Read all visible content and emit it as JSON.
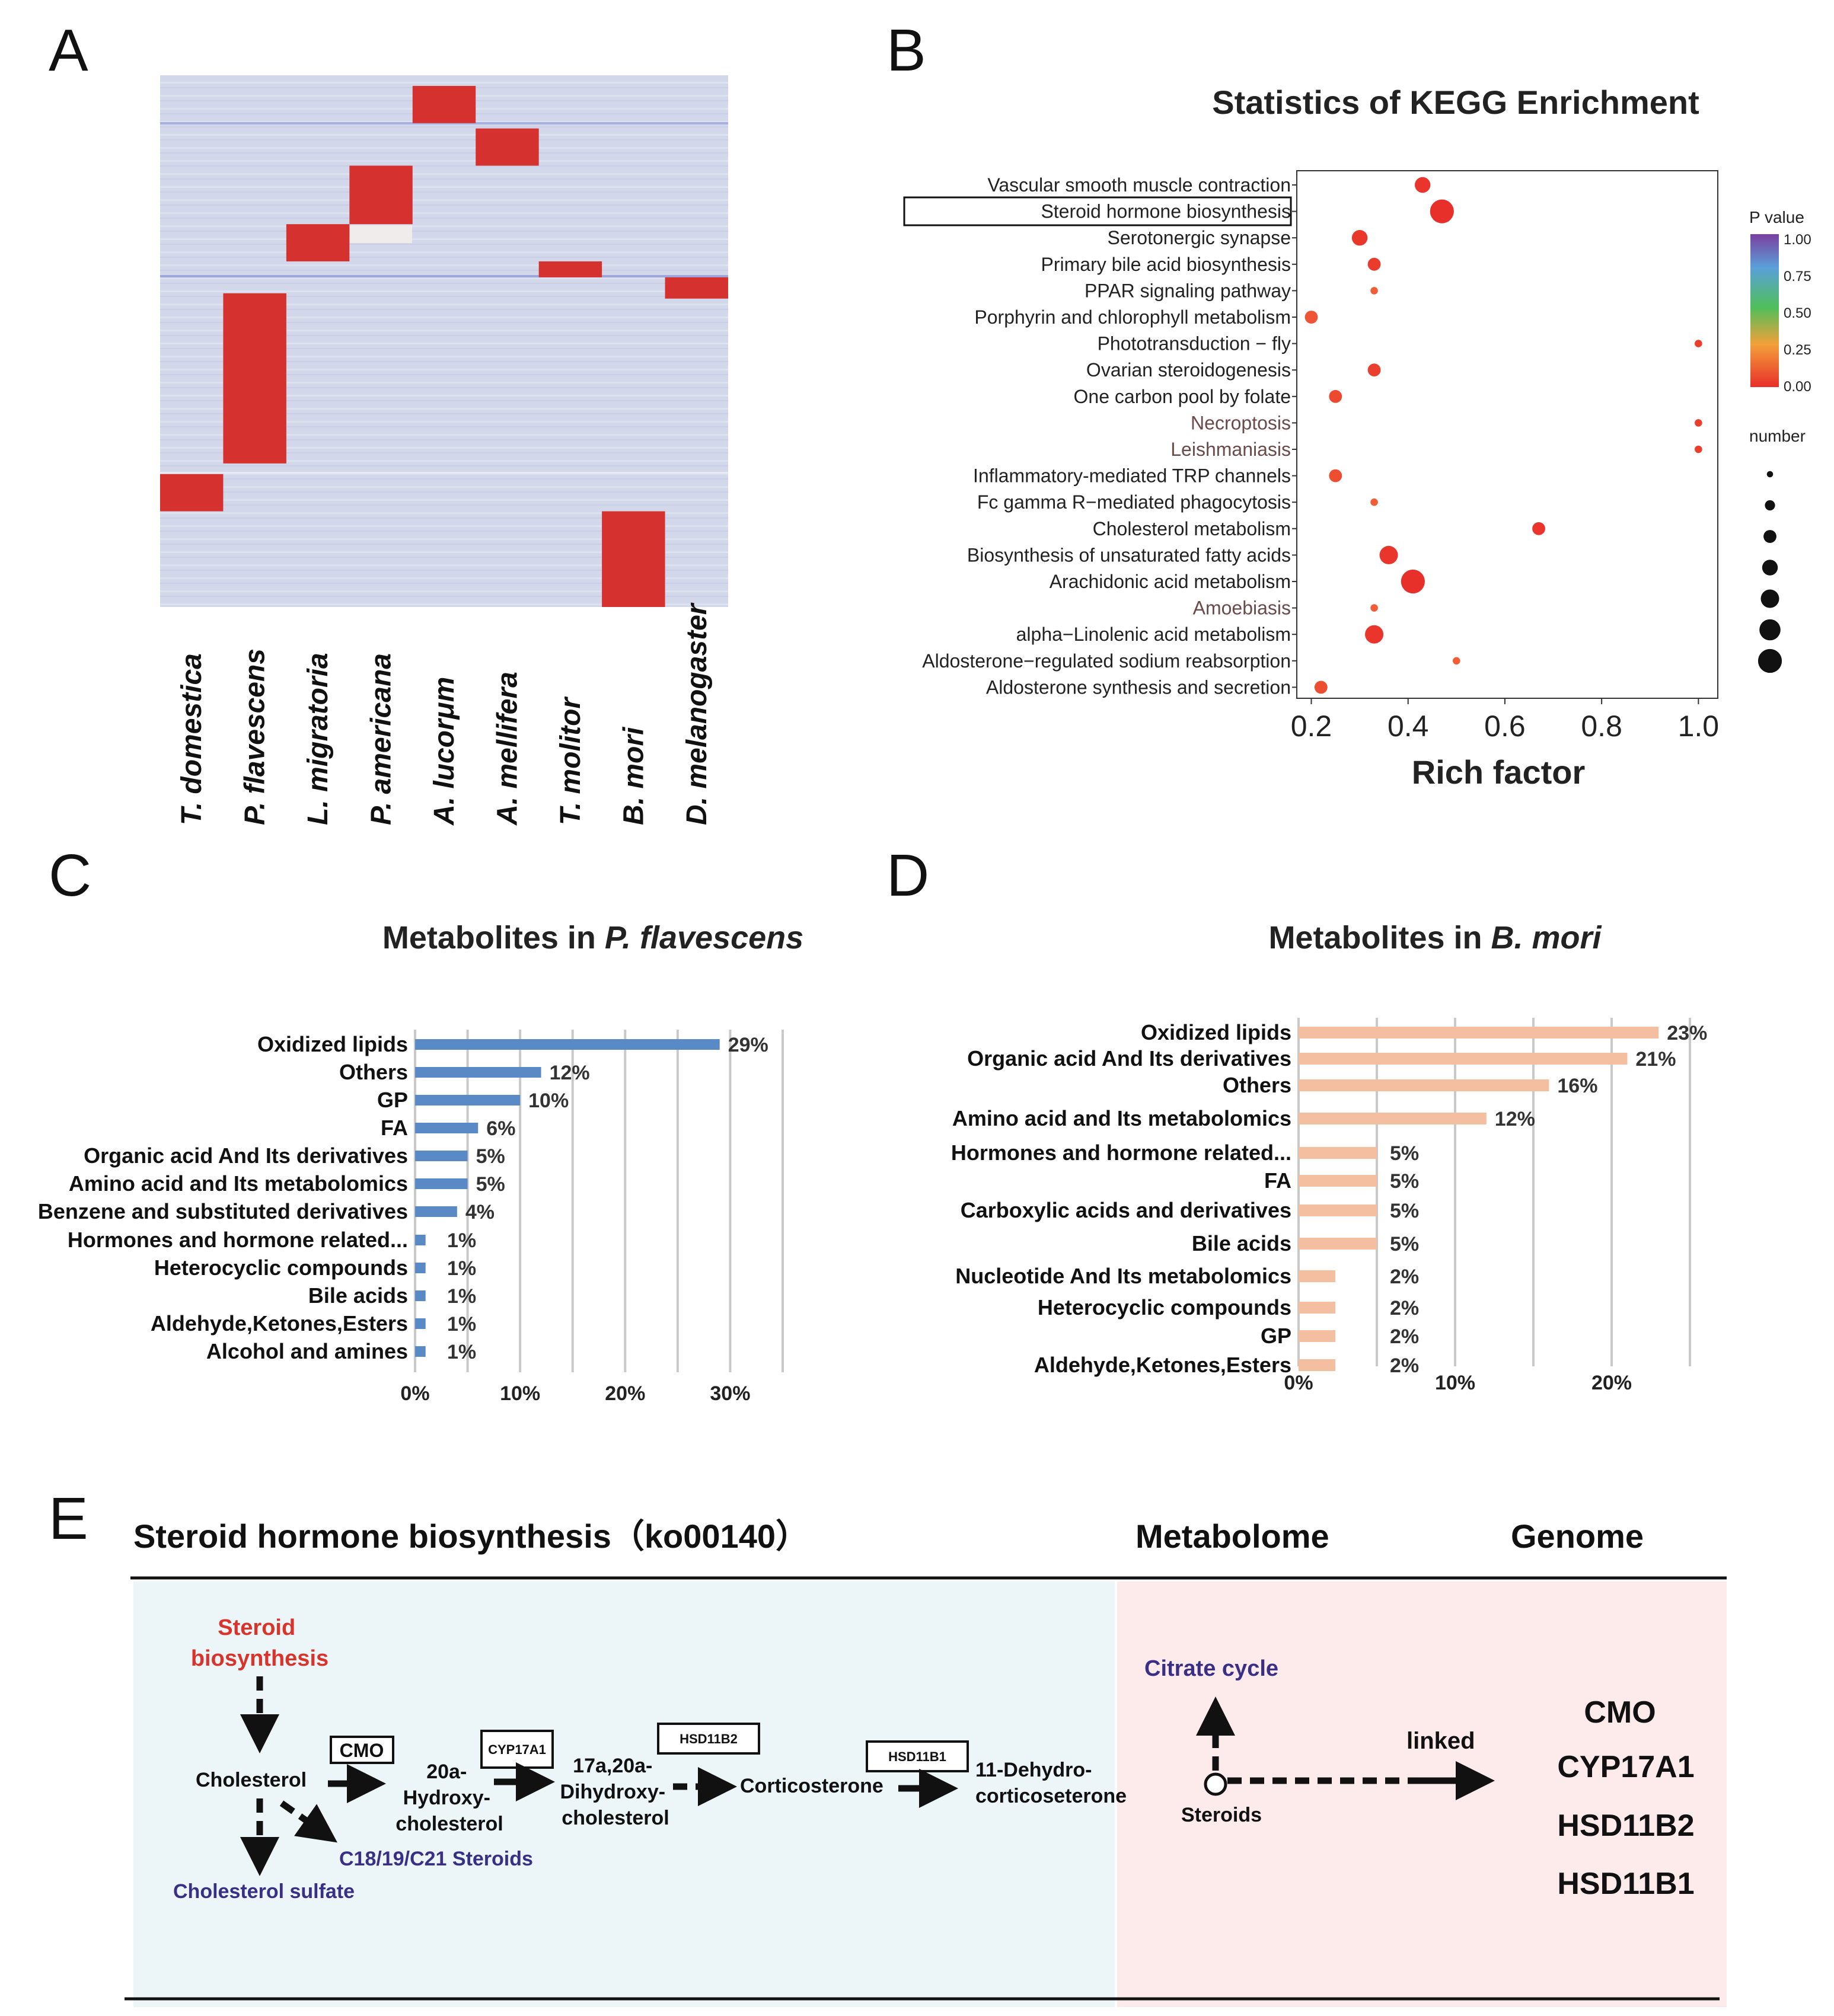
{
  "panels": {
    "a": "A",
    "b": "B",
    "c": "C",
    "d": "D",
    "e": "E"
  },
  "heatmap": {
    "species": [
      "T. domestica",
      "P. flavescens",
      "L. migratoria",
      "P. americana",
      "A. lucorμm",
      "A. mellifera",
      "T. molitor",
      "B. mori",
      "D. melanogaster"
    ],
    "colors": {
      "low": "#d3d7ea",
      "high": "#d5312e"
    }
  },
  "kegg": {
    "title": "Statistics of KEGG Enrichment",
    "xlabel": "Rich factor",
    "ticks": [
      "0.2",
      "0.4",
      "0.6",
      "0.8",
      "1.0"
    ],
    "pvalue_title": "P value",
    "pvalue_ticks": [
      "1.00",
      "0.75",
      "0.50",
      "0.25",
      "0.00"
    ],
    "number_title": "number",
    "boxed_term": "Steroid hormone biosynthesis"
  },
  "chart_data": [
    {
      "type": "heatmap",
      "panel": "A",
      "columns": [
        "T. domestica",
        "P. flavescens",
        "L. migratoria",
        "P. americana",
        "A. lucorμm",
        "A. mellifera",
        "T. molitor",
        "B. mori",
        "D. melanogaster"
      ],
      "high_blocks_row_fraction": [
        [
          0.75,
          0.82
        ],
        [
          0.41,
          0.73
        ],
        [
          0.28,
          0.35
        ],
        [
          0.17,
          0.28
        ],
        [
          0.02,
          0.09
        ],
        [
          0.1,
          0.17
        ],
        [
          0.35,
          0.38
        ],
        [
          0.82,
          1.0
        ],
        [
          0.38,
          0.42
        ]
      ]
    },
    {
      "type": "scatter",
      "panel": "B",
      "title": "Statistics of KEGG Enrichment",
      "xlabel": "Rich factor",
      "xlim": [
        0.17,
        1.04
      ],
      "terms": [
        {
          "name": "Vascular smooth muscle contraction",
          "rich": 0.43,
          "size": 4,
          "p": 0.02,
          "colored": false
        },
        {
          "name": "Steroid hormone biosynthesis",
          "rich": 0.47,
          "size": 7,
          "p": 0.0,
          "colored": false
        },
        {
          "name": "Serotonergic synapse",
          "rich": 0.3,
          "size": 4,
          "p": 0.03,
          "colored": false
        },
        {
          "name": "Primary bile acid biosynthesis",
          "rich": 0.33,
          "size": 3,
          "p": 0.05,
          "colored": false
        },
        {
          "name": "PPAR signaling pathway",
          "rich": 0.33,
          "size": 1,
          "p": 0.18,
          "colored": false
        },
        {
          "name": "Porphyrin and chlorophyll metabolism",
          "rich": 0.2,
          "size": 3,
          "p": 0.15,
          "colored": false
        },
        {
          "name": "Phototransduction − fly",
          "rich": 1.0,
          "size": 1,
          "p": 0.06,
          "colored": false
        },
        {
          "name": "Ovarian steroidogenesis",
          "rich": 0.33,
          "size": 3,
          "p": 0.06,
          "colored": false
        },
        {
          "name": "One carbon pool by folate",
          "rich": 0.25,
          "size": 3,
          "p": 0.1,
          "colored": false
        },
        {
          "name": "Necroptosis",
          "rich": 1.0,
          "size": 1,
          "p": 0.06,
          "colored": true
        },
        {
          "name": "Leishmaniasis",
          "rich": 1.0,
          "size": 1,
          "p": 0.06,
          "colored": true
        },
        {
          "name": "Inflammatory-mediated TRP channels",
          "rich": 0.25,
          "size": 3,
          "p": 0.12,
          "colored": false
        },
        {
          "name": "Fc gamma R−mediated phagocytosis",
          "rich": 0.33,
          "size": 1,
          "p": 0.18,
          "colored": false
        },
        {
          "name": "Cholesterol metabolism",
          "rich": 0.67,
          "size": 3,
          "p": 0.02,
          "colored": false
        },
        {
          "name": "Biosynthesis of unsaturated fatty acids",
          "rich": 0.36,
          "size": 5,
          "p": 0.02,
          "colored": false
        },
        {
          "name": "Arachidonic acid metabolism",
          "rich": 0.41,
          "size": 7,
          "p": 0.0,
          "colored": false
        },
        {
          "name": "Amoebiasis",
          "rich": 0.33,
          "size": 1,
          "p": 0.18,
          "colored": true
        },
        {
          "name": "alpha−Linolenic acid metabolism",
          "rich": 0.33,
          "size": 5,
          "p": 0.02,
          "colored": false
        },
        {
          "name": "Aldosterone−regulated sodium reabsorption",
          "rich": 0.5,
          "size": 1,
          "p": 0.18,
          "colored": false
        },
        {
          "name": "Aldosterone synthesis and secretion",
          "rich": 0.22,
          "size": 3,
          "p": 0.12,
          "colored": false
        }
      ]
    },
    {
      "type": "bar",
      "panel": "C",
      "title_prefix": "Metabolites in ",
      "title_species": "P. flavescens",
      "categories": [
        "Oxidized lipids",
        "Others",
        "GP",
        "FA",
        "Organic acid And  Its derivatives",
        "Amino acid  and Its metabolomics",
        "Benzene and substituted derivatives",
        "Hormones and hormone related...",
        "Heterocyclic compounds",
        "Bile acids",
        "Aldehyde,Ketones,Esters",
        "Alcohol and amines"
      ],
      "values": [
        29,
        12,
        10,
        6,
        5,
        5,
        4,
        1,
        1,
        1,
        1,
        1
      ],
      "labels": [
        "29%",
        "12%",
        "10%",
        "6%",
        "5%",
        "5%",
        "4%",
        "1%",
        "1%",
        "1%",
        "1%",
        "1%"
      ],
      "xticks": [
        "0%",
        "10%",
        "20%",
        "30%"
      ],
      "xlim": [
        0,
        35
      ],
      "color": "#5a8ac6"
    },
    {
      "type": "bar",
      "panel": "D",
      "title_prefix": "Metabolites in ",
      "title_species": "B. mori",
      "categories": [
        "Oxidized lipids",
        "Organic acid And  Its derivatives",
        "Others",
        "Amino acid  and Its metabolomics",
        "Hormones and hormone related...",
        "FA",
        "Carboxylic acids and derivatives",
        "Bile acids",
        "Nucleotide And  Its metabolomics",
        "Heterocyclic compounds",
        "GP",
        "Aldehyde,Ketones,Esters"
      ],
      "values": [
        23,
        21,
        16,
        12,
        5,
        5,
        5,
        5,
        2,
        2,
        2,
        2
      ],
      "labels": [
        "23%",
        "21%",
        "16%",
        "12%",
        "5%",
        "5%",
        "5%",
        "5%",
        "2%",
        "2%",
        "2%",
        "2%"
      ],
      "xticks": [
        "0%",
        "10%",
        "20%"
      ],
      "xlim": [
        0,
        25
      ],
      "color": "#f4bea1"
    }
  ],
  "pathway": {
    "header_left": "Steroid hormone biosynthesis（ko00140）",
    "header_mid": "Metabolome",
    "header_right": "Genome",
    "steroid_biosynthesis": [
      "Steroid",
      "biosynthesis"
    ],
    "cholesterol": "Cholesterol",
    "cholesterol_sulfate": "Cholesterol sulfate",
    "c_steroids": "C18/19/C21 Steroids",
    "enzyme_cmo": "CMO",
    "enzyme_cyp17a1": "CYP17A1",
    "enzyme_hsd11b2": "HSD11B2",
    "enzyme_hsd11b1": "HSD11B1",
    "hydroxy": [
      "20a-",
      "Hydroxy-",
      "cholesterol"
    ],
    "dihydroxy": [
      "17a,20a-",
      "Dihydroxy-",
      "cholesterol"
    ],
    "corticosterone": "Corticosterone",
    "dehydro": [
      "11-Dehydro-",
      "corticoseterone"
    ],
    "citrate_cycle": "Citrate cycle",
    "steroids": "Steroids",
    "linked": "linked",
    "genes": [
      "CMO",
      "CYP17A1",
      "HSD11B2",
      "HSD11B1"
    ],
    "colors": {
      "left_bg": "#ecf5f8",
      "right_bg": "#fdebec",
      "red": "#d8342c",
      "navy": "#3a2f86"
    }
  }
}
